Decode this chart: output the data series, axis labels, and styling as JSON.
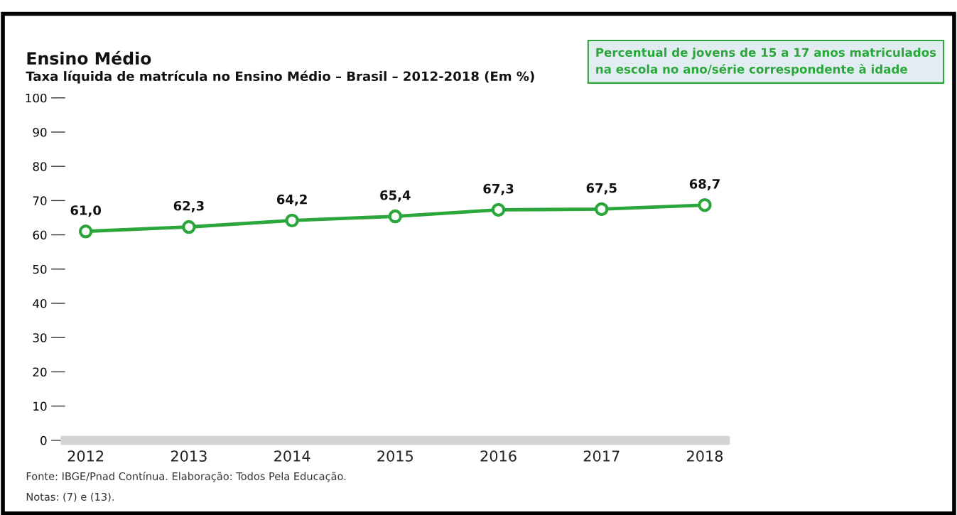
{
  "chart_data": {
    "type": "line",
    "title": "Ensino Médio",
    "subtitle": "Taxa líquida de matrícula no Ensino Médio – Brasil – 2012-2018 (Em %)",
    "categories": [
      "2012",
      "2013",
      "2014",
      "2015",
      "2016",
      "2017",
      "2018"
    ],
    "series": [
      {
        "color": "#2aa63a",
        "values": [
          61.0,
          62.3,
          64.2,
          65.4,
          67.3,
          67.5,
          68.7
        ]
      }
    ],
    "value_labels": [
      "61,0",
      "62,3",
      "64,2",
      "65,4",
      "67,3",
      "67,5",
      "68,7"
    ],
    "ylim": [
      0,
      100
    ],
    "yticks": [
      0,
      10,
      20,
      30,
      40,
      50,
      60,
      70,
      80,
      90,
      100
    ],
    "marker": "circle",
    "line_style": "solid",
    "grid": false,
    "annotations": [
      "Percentual de jovens de 15 a 17 anos matriculados\nna escola no ano/série correspondente à idade",
      "Fonte: IBGE/Pnad Contínua. Elaboração: Todos Pela Educação.",
      "Notas: (7) e (13)."
    ]
  }
}
